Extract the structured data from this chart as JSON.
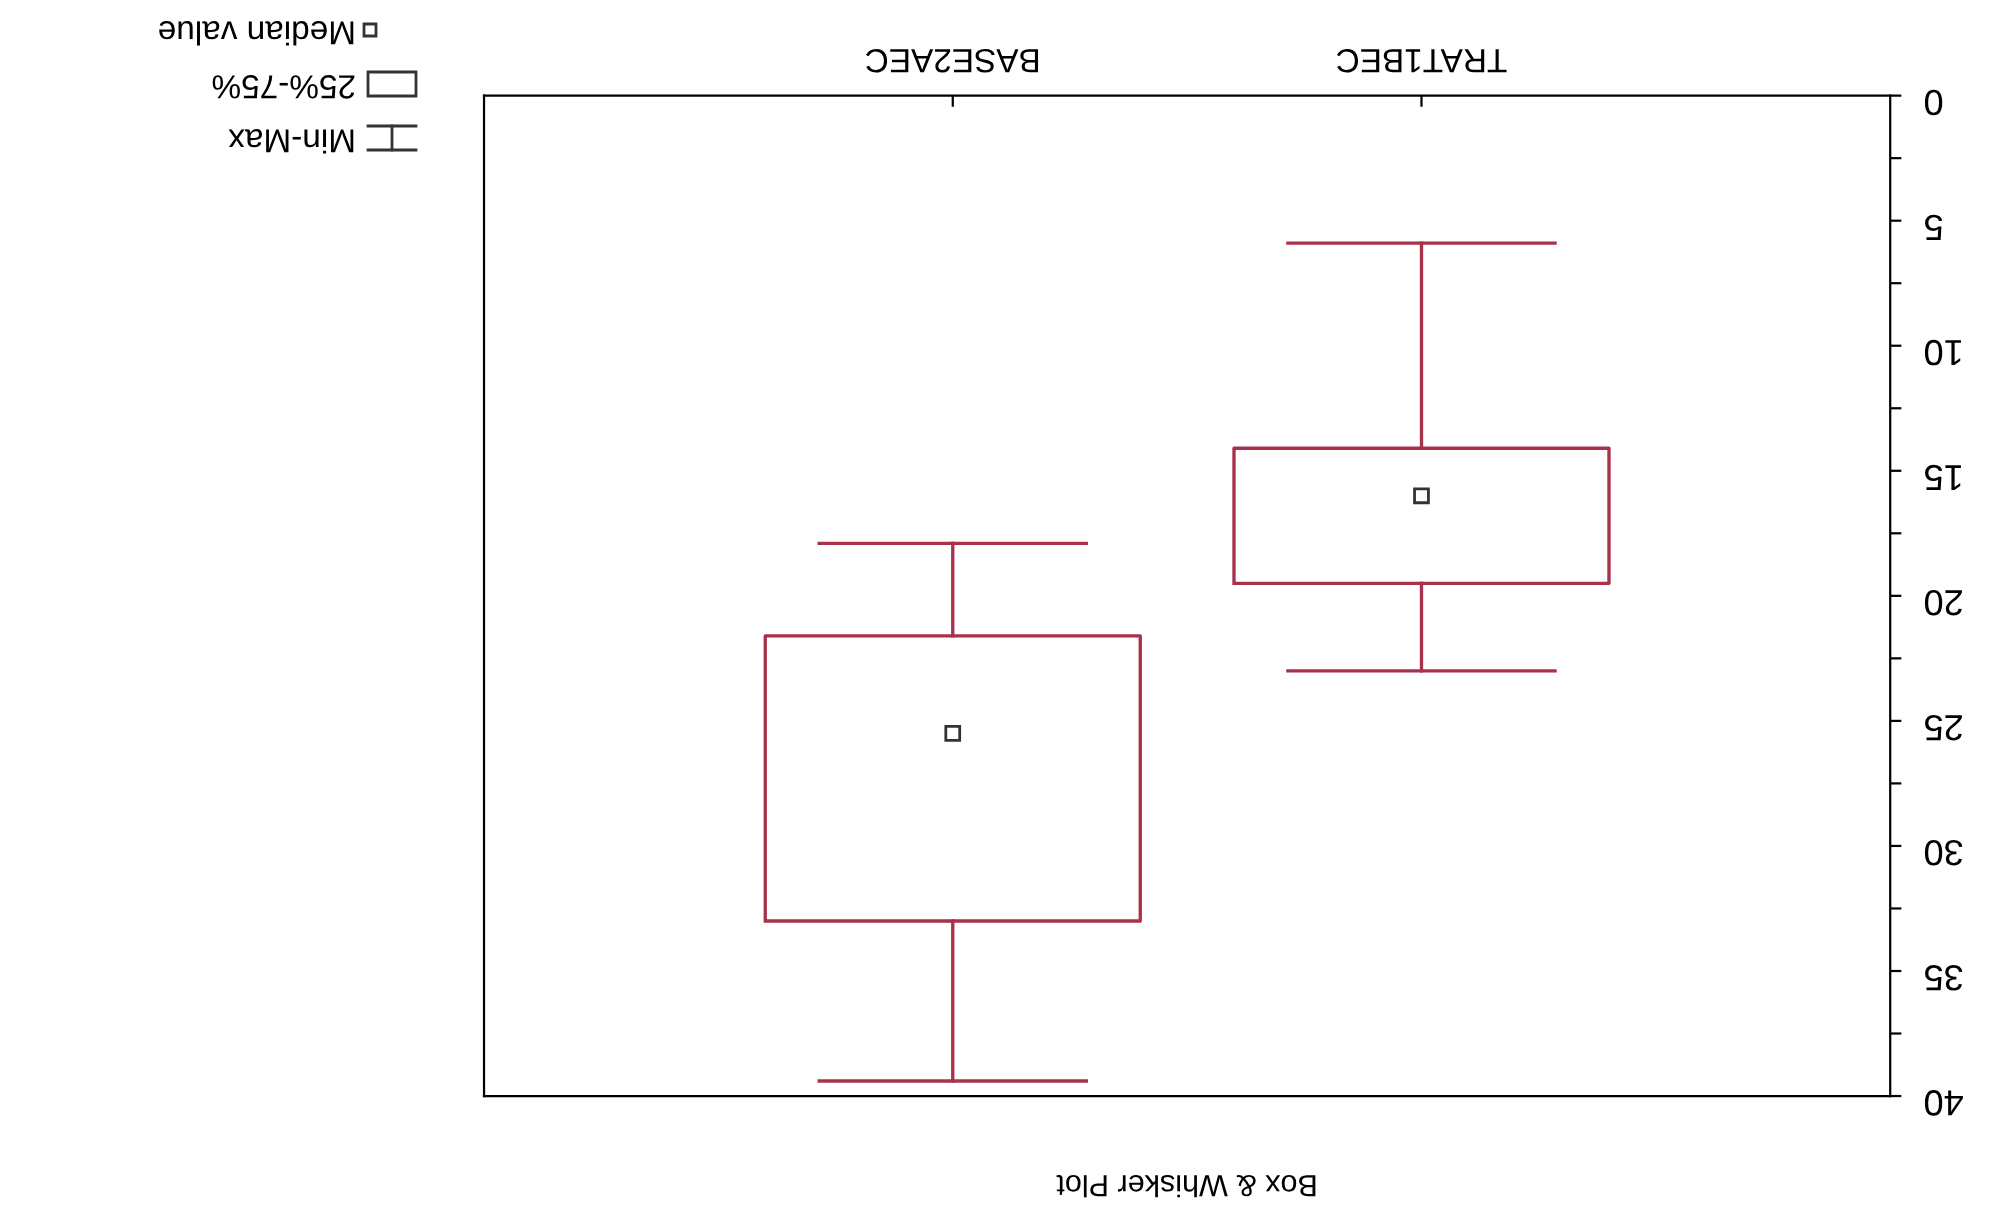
{
  "chart_data": {
    "type": "box",
    "title": "Box & Whisker Plot",
    "categories": [
      "BASE2AEC",
      "TRAT1BEC"
    ],
    "boxes": [
      {
        "low": 39.4,
        "q1": 33.0,
        "median": 25.5,
        "q3": 21.6,
        "high": 17.9
      },
      {
        "low": 23.0,
        "q1": 19.5,
        "median": 16.0,
        "q3": 14.1,
        "high": 5.9
      }
    ],
    "color": "#a8324a",
    "ylim": [
      40,
      0
    ],
    "yticks": [
      0,
      {
        "value": 2.5,
        "label": null
      },
      5,
      {
        "value": 7.5,
        "label": null
      },
      10,
      {
        "value": 12.5,
        "label": null
      },
      15,
      {
        "value": 17.5,
        "label": null
      },
      20,
      {
        "value": 22.5,
        "label": null
      },
      25,
      {
        "value": 27.5,
        "label": null
      },
      30,
      {
        "value": 32.5,
        "label": null
      },
      35,
      {
        "value": 37.5,
        "label": null
      },
      40
    ],
    "annotations": [
      "Median value",
      "25%-75%",
      "Min-Max"
    ],
    "marker": "square",
    "grid": false
  }
}
